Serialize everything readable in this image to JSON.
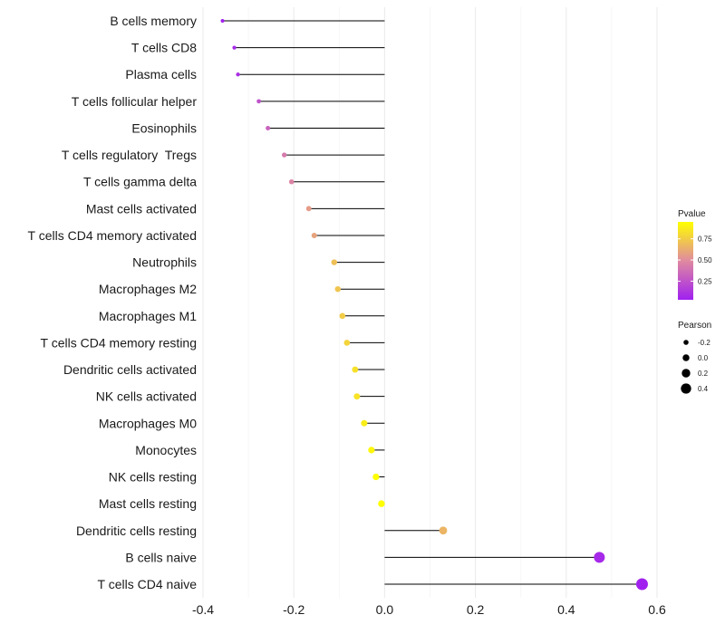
{
  "chart_data": {
    "type": "lollipop",
    "title": "",
    "xlabel": "",
    "ylabel": "",
    "xlim": [
      -0.4,
      0.6
    ],
    "xticks": [
      -0.4,
      -0.2,
      0.0,
      0.2,
      0.4,
      0.6
    ],
    "xtick_labels": [
      "-0.4",
      "-0.2",
      "0.0",
      "0.2",
      "0.4",
      "0.6"
    ],
    "grid": true,
    "points": [
      {
        "cell": "B cells memory",
        "pearson": -0.357,
        "pvalue": 0.02
      },
      {
        "cell": "T cells CD8",
        "pearson": -0.331,
        "pvalue": 0.08
      },
      {
        "cell": "Plasma cells",
        "pearson": -0.323,
        "pvalue": 0.1
      },
      {
        "cell": "T cells follicular helper",
        "pearson": -0.277,
        "pvalue": 0.25
      },
      {
        "cell": "Eosinophils",
        "pearson": -0.257,
        "pvalue": 0.32
      },
      {
        "cell": "T cells regulatory  Tregs",
        "pearson": -0.221,
        "pvalue": 0.42
      },
      {
        "cell": "T cells gamma delta",
        "pearson": -0.205,
        "pvalue": 0.46
      },
      {
        "cell": "Mast cells activated",
        "pearson": -0.167,
        "pvalue": 0.56
      },
      {
        "cell": "T cells CD4 memory activated",
        "pearson": -0.155,
        "pvalue": 0.59
      },
      {
        "cell": "Neutrophils",
        "pearson": -0.111,
        "pvalue": 0.7
      },
      {
        "cell": "Macrophages M2",
        "pearson": -0.103,
        "pvalue": 0.72
      },
      {
        "cell": "Macrophages M1",
        "pearson": -0.093,
        "pvalue": 0.75
      },
      {
        "cell": "T cells CD4 memory resting",
        "pearson": -0.083,
        "pvalue": 0.78
      },
      {
        "cell": "Dendritic cells activated",
        "pearson": -0.065,
        "pvalue": 0.83
      },
      {
        "cell": "NK cells activated",
        "pearson": -0.061,
        "pvalue": 0.84
      },
      {
        "cell": "Macrophages M0",
        "pearson": -0.045,
        "pvalue": 0.88
      },
      {
        "cell": "Monocytes",
        "pearson": -0.029,
        "pvalue": 0.92
      },
      {
        "cell": "NK cells resting",
        "pearson": -0.019,
        "pvalue": 0.95
      },
      {
        "cell": "Mast cells resting",
        "pearson": -0.007,
        "pvalue": 0.98
      },
      {
        "cell": "Dendritic cells resting",
        "pearson": 0.129,
        "pvalue": 0.66
      },
      {
        "cell": "B cells naive",
        "pearson": 0.473,
        "pvalue": 0.07
      },
      {
        "cell": "T cells CD4 naive",
        "pearson": 0.567,
        "pvalue": 0.04
      }
    ],
    "legend_pvalue": {
      "title": "Pvalue",
      "range": [
        0.03,
        0.95
      ],
      "ticks": [
        0.25,
        0.5,
        0.75
      ],
      "tick_labels": [
        "0.25",
        "0.50",
        "0.75"
      ],
      "colors": [
        "#a020f0",
        "#e08aa0",
        "#ffff00"
      ]
    },
    "legend_pearson": {
      "title": "Pearson",
      "values": [
        -0.2,
        0.0,
        0.2,
        0.4
      ],
      "labels": [
        "-0.2",
        "0.0",
        "0.2",
        "0.4"
      ]
    },
    "colors": {
      "stem": "#000000",
      "grid": "#ebebeb",
      "point_stroke": "none"
    }
  }
}
